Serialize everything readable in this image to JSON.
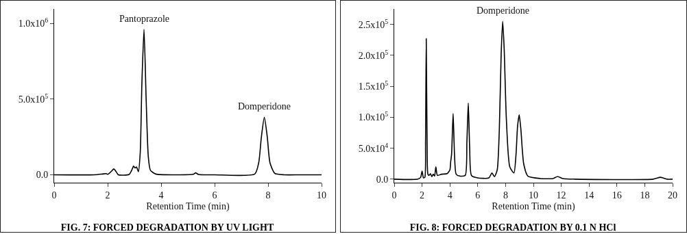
{
  "chart_data": [
    {
      "type": "line",
      "title": "FIG. 7: FORCED DEGRADATION BY UV LIGHT",
      "xlabel": "Retention Time (min)",
      "x": [
        0,
        1.5,
        1.8,
        1.95,
        2.0,
        2.05,
        2.15,
        2.23,
        2.32,
        2.4,
        2.8,
        2.9,
        2.97,
        3.03,
        3.08,
        3.15,
        3.22,
        3.28,
        3.36,
        3.44,
        3.52,
        3.6,
        3.8,
        4.5,
        5.2,
        5.29,
        5.4,
        6,
        7.5,
        7.65,
        7.75,
        7.86,
        7.97,
        8.07,
        8.25,
        8.6,
        9.2,
        10
      ],
      "series": [
        {
          "color": "#000000",
          "values": [
            0,
            0,
            5000,
            8000,
            3000,
            8000,
            25000,
            39000,
            20000,
            0,
            2000,
            30000,
            57000,
            45000,
            52000,
            20000,
            150000,
            600000,
            960000,
            500000,
            120000,
            30000,
            5000,
            0,
            3000,
            13000,
            2000,
            0,
            5000,
            80000,
            250000,
            380000,
            250000,
            80000,
            10000,
            0,
            0,
            0
          ]
        }
      ],
      "xlim": [
        0,
        10
      ],
      "xticks": [
        0,
        2,
        4,
        6,
        8,
        10
      ],
      "ylim": [
        -52000,
        1095000
      ],
      "yticks": [
        {
          "value": 0,
          "label": "0.0"
        },
        {
          "value": 500000,
          "label": "5.0x10$^{5}$"
        },
        {
          "value": 1000000,
          "label": "1.0x10$^{6}$"
        }
      ],
      "annotations": [
        {
          "text": "Pantoprazole",
          "x": 3.36,
          "y": 960000
        },
        {
          "text": "Domperidone",
          "x": 7.86,
          "y": 380000
        }
      ]
    },
    {
      "type": "line",
      "title": "FIG. 8: FORCED DEGRADATION BY 0.1 N HCl",
      "xlabel": "Retention Time (min)",
      "x": [
        0,
        1.7,
        1.9,
        2.0,
        2.1,
        2.2,
        2.25,
        2.3,
        2.36,
        2.42,
        2.5,
        2.6,
        2.7,
        2.8,
        2.9,
        2.99,
        3.1,
        3.4,
        3.8,
        4.0,
        4.05,
        4.12,
        4.23,
        4.33,
        4.45,
        4.7,
        5.1,
        5.22,
        5.32,
        5.42,
        5.55,
        6.0,
        6.8,
        7.02,
        7.2,
        7.4,
        7.55,
        7.68,
        7.79,
        7.9,
        8.05,
        8.3,
        8.6,
        8.75,
        8.86,
        8.98,
        9.1,
        9.3,
        9.6,
        10.5,
        11.4,
        11.74,
        12.1,
        13,
        18.6,
        19.14,
        19.6,
        20
      ],
      "series": [
        {
          "color": "#000000",
          "values": [
            0,
            0,
            3000,
            13000,
            2000,
            3000,
            60000,
            227000,
            60000,
            8000,
            6000,
            9000,
            4000,
            8000,
            5000,
            20000,
            6000,
            8000,
            9000,
            15000,
            27000,
            40000,
            106000,
            40000,
            8000,
            5000,
            6000,
            60000,
            123000,
            50000,
            6000,
            2000,
            2000,
            10000,
            4000,
            15000,
            80000,
            200000,
            255000,
            210000,
            100000,
            20000,
            10000,
            40000,
            85000,
            104000,
            80000,
            25000,
            5000,
            1000,
            1000,
            4300,
            1000,
            0,
            0,
            3000,
            0,
            0
          ]
        }
      ],
      "xlim": [
        0,
        20
      ],
      "xticks": [
        0,
        2,
        4,
        6,
        8,
        10,
        12,
        14,
        16,
        18,
        20
      ],
      "ylim": [
        -5700,
        275000
      ],
      "yticks": [
        {
          "value": 0,
          "label": "0.0"
        },
        {
          "value": 50000,
          "label": "5.0x10$^{4}$"
        },
        {
          "value": 100000,
          "label": "1.0x10$^{5}$"
        },
        {
          "value": 150000,
          "label": "1.5x10$^{5}$"
        },
        {
          "value": 200000,
          "label": "2.0x10$^{5}$"
        },
        {
          "value": 250000,
          "label": "2.5x10$^{5}$"
        }
      ],
      "annotations": [
        {
          "text": "Domperidone",
          "x": 7.79,
          "y": 255000
        }
      ]
    }
  ]
}
